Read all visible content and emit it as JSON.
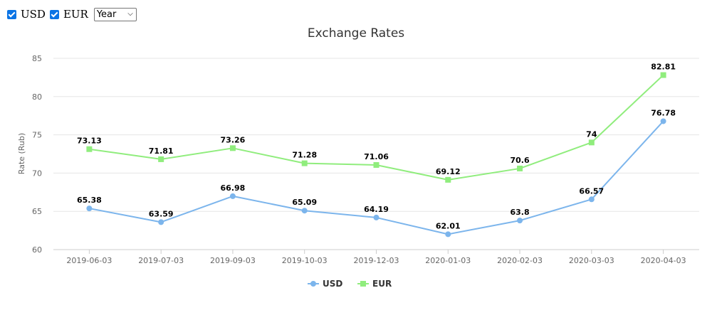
{
  "controls": {
    "usd_label": "USD",
    "eur_label": "EUR",
    "usd_checked": true,
    "eur_checked": true,
    "period_value": "Year"
  },
  "chart_data": {
    "type": "line",
    "title": "Exchange Rates",
    "ylabel": "Rate (Rub)",
    "xlabel": "",
    "x": [
      "2019-06-03",
      "2019-07-03",
      "2019-09-03",
      "2019-10-03",
      "2019-12-03",
      "2020-01-03",
      "2020-02-03",
      "2020-03-03",
      "2020-04-03"
    ],
    "ylim": [
      60,
      85
    ],
    "yticks": [
      60,
      65,
      70,
      75,
      80,
      85
    ],
    "grid": true,
    "legend_position": "bottom-center",
    "series": [
      {
        "name": "USD",
        "color": "#7cb5ec",
        "marker": "circle",
        "values": [
          65.38,
          63.59,
          66.98,
          65.09,
          64.19,
          62.01,
          63.8,
          66.57,
          76.78
        ]
      },
      {
        "name": "EUR",
        "color": "#90ed7d",
        "marker": "square",
        "values": [
          73.13,
          71.81,
          73.26,
          71.28,
          71.06,
          69.12,
          70.6,
          74,
          82.81
        ]
      }
    ]
  }
}
